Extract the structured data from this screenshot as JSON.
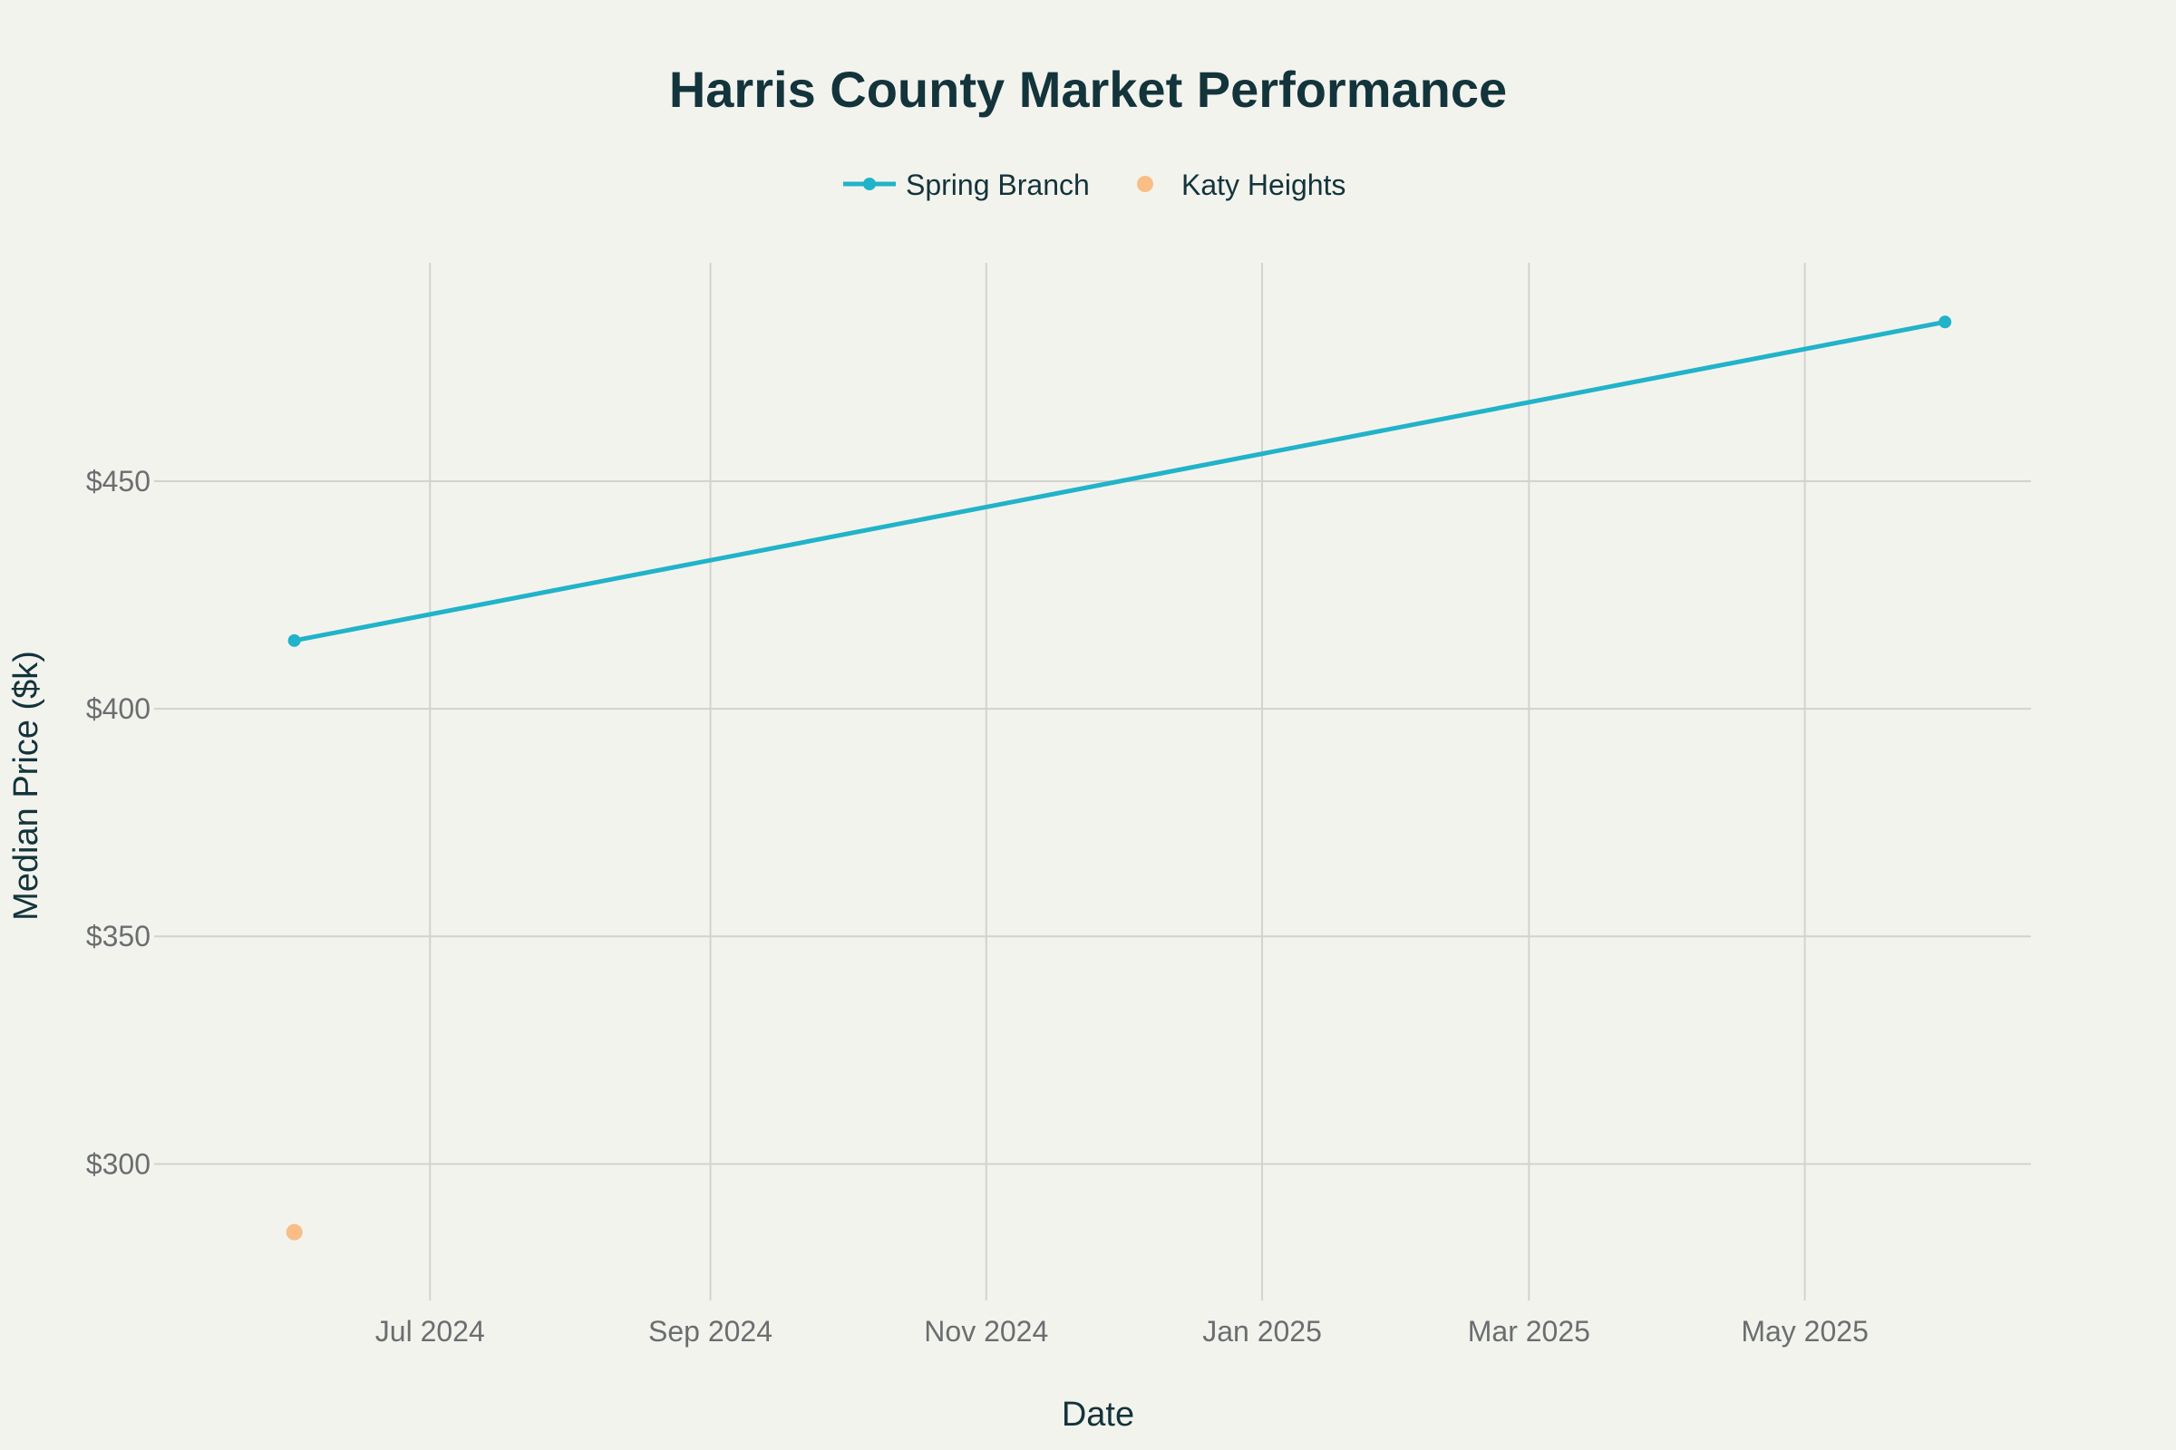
{
  "chart_data": {
    "type": "line",
    "title": "Harris County Market Performance",
    "xlabel": "Date",
    "ylabel": "Median Price ($k)",
    "x_axis": {
      "type": "date",
      "range": [
        "2024-05-01",
        "2025-06-20"
      ],
      "tick_values": [
        "2024-07-01",
        "2024-09-01",
        "2024-11-01",
        "2025-01-01",
        "2025-03-01",
        "2025-05-01"
      ],
      "tick_labels": [
        "Jul 2024",
        "Sep 2024",
        "Nov 2024",
        "Jan 2025",
        "Mar 2025",
        "May 2025"
      ]
    },
    "y_axis": {
      "range": [
        270,
        498
      ],
      "tick_values": [
        300,
        350,
        400,
        450
      ],
      "tick_labels": [
        "$300",
        "$350",
        "$400",
        "$450"
      ]
    },
    "grid": true,
    "legend": {
      "placement": "top-center",
      "orientation": "horizontal"
    },
    "series": [
      {
        "name": "Spring Branch",
        "mode": "lines+markers",
        "color": "#21b3c9",
        "points": [
          {
            "x": "2024-06-01",
            "y": 415
          },
          {
            "x": "2025-06-01",
            "y": 485
          }
        ]
      },
      {
        "name": "Katy Heights",
        "mode": "markers",
        "color": "#f9bd85",
        "points": [
          {
            "x": "2024-06-01",
            "y": 285
          }
        ]
      }
    ]
  }
}
